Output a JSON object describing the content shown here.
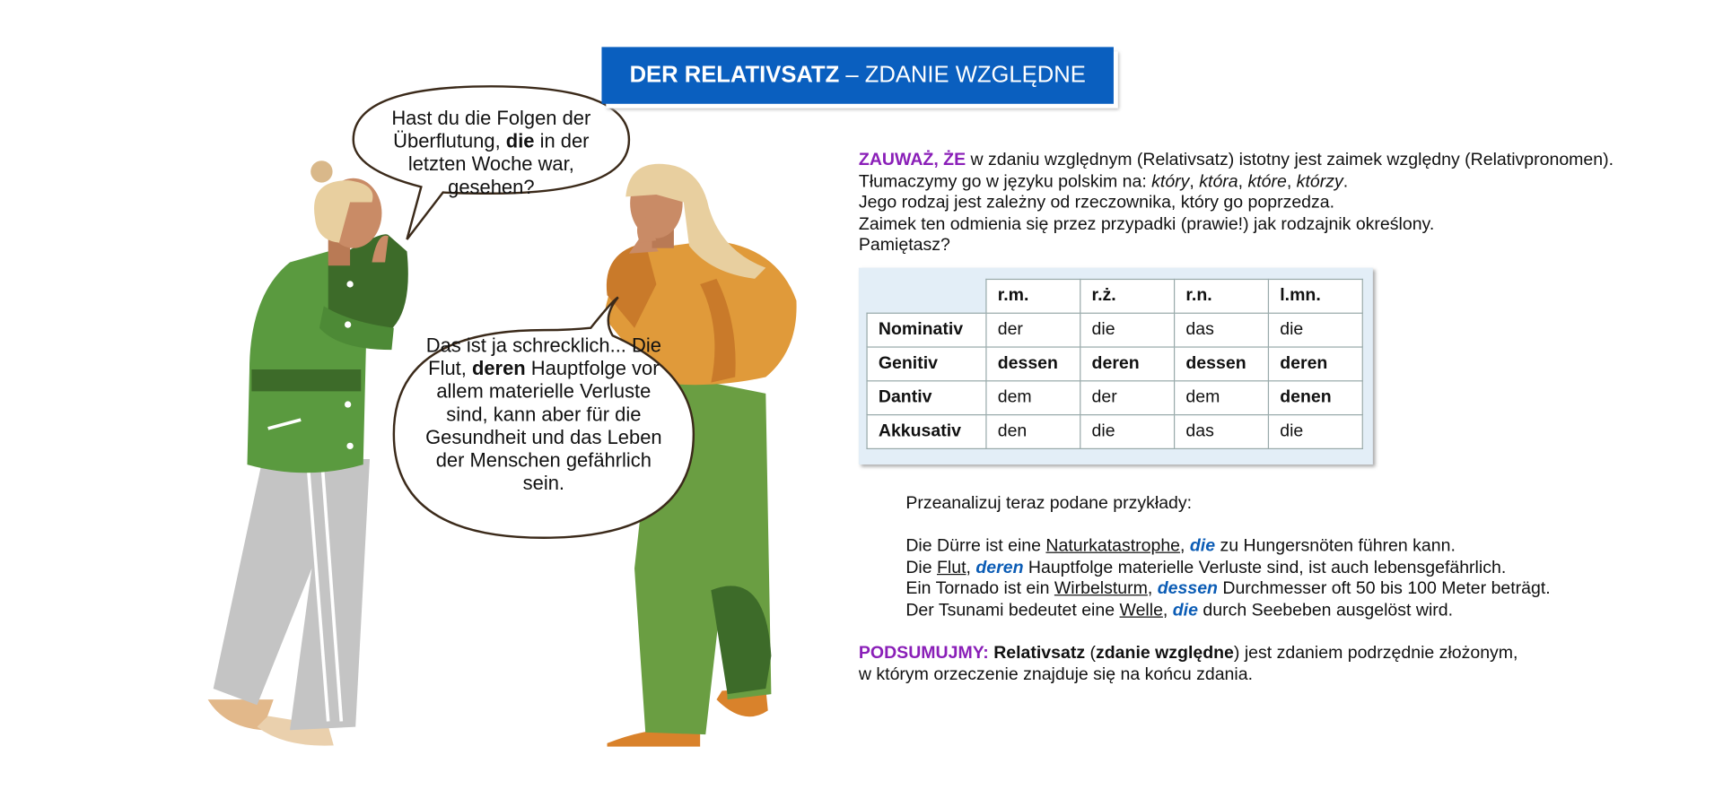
{
  "title": [
    {
      "text": "DER RELATIVSATZ",
      "style": "bold"
    },
    {
      "text": " – ZDANIE WZGLĘDNE"
    }
  ],
  "bubble_1": [
    {
      "text": "Hast du die Folgen der Überflutung, "
    },
    {
      "text": "die",
      "style": "bold"
    },
    {
      "text": " in der letzten Woche war, gesehen?"
    }
  ],
  "bubble_2": [
    {
      "text": "Das ist ja schrecklich... Die Flut, "
    },
    {
      "text": "deren",
      "style": "bold"
    },
    {
      "text": " Hauptfolge vor allem materielle Verluste sind, kann aber für die Gesundheit und das Leben der Menschen gefährlich sein."
    }
  ],
  "note": {
    "lines": [
      [
        {
          "text": "ZAUWAŻ, ŻE",
          "style": "label"
        },
        {
          "text": " w zdaniu względnym (Relativsatz) istotny jest zaimek względny (Relativpronomen)."
        }
      ],
      [
        {
          "text": "Tłumaczymy go w języku polskim na: "
        },
        {
          "text": "który",
          "style": "italic"
        },
        {
          "text": ", "
        },
        {
          "text": "która",
          "style": "italic"
        },
        {
          "text": ", "
        },
        {
          "text": "które",
          "style": "italic"
        },
        {
          "text": ", "
        },
        {
          "text": "którzy",
          "style": "italic"
        },
        {
          "text": "."
        }
      ],
      [
        {
          "text": "Jego rodzaj jest zależny od rzeczownika, który go poprzedza."
        }
      ],
      [
        {
          "text": "Zaimek ten odmienia się przez przypadki (prawie!) jak rodzajnik określony."
        }
      ],
      [
        {
          "text": "Pamiętasz?"
        }
      ]
    ]
  },
  "table": {
    "header": [
      "r.m.",
      "r.ż.",
      "r.n.",
      "l.mn."
    ],
    "rows": [
      {
        "case": "Nominativ",
        "forms": [
          {
            "text": "der"
          },
          {
            "text": "die"
          },
          {
            "text": "das"
          },
          {
            "text": "die"
          }
        ]
      },
      {
        "case": "Genitiv",
        "forms": [
          {
            "text": "dessen",
            "style": "bold"
          },
          {
            "text": "deren",
            "style": "bold"
          },
          {
            "text": "dessen",
            "style": "bold"
          },
          {
            "text": "deren",
            "style": "bold"
          }
        ]
      },
      {
        "case": "Dantiv",
        "forms": [
          {
            "text": "dem"
          },
          {
            "text": "der"
          },
          {
            "text": "dem"
          },
          {
            "text": "denen",
            "style": "bold"
          }
        ]
      },
      {
        "case": "Akkusativ",
        "forms": [
          {
            "text": "den"
          },
          {
            "text": "die"
          },
          {
            "text": "das"
          },
          {
            "text": "die"
          }
        ]
      }
    ]
  },
  "examples": {
    "intro": "Przeanalizuj teraz podane przykłady:",
    "lines": [
      [
        {
          "text": "Die Dürre ist eine "
        },
        {
          "text": "Naturkatastrophe",
          "style": "underline"
        },
        {
          "text": ", "
        },
        {
          "text": "die",
          "style": "pronoun"
        },
        {
          "text": " zu Hungersnöten führen kann."
        }
      ],
      [
        {
          "text": "Die "
        },
        {
          "text": "Flut",
          "style": "underline"
        },
        {
          "text": ", "
        },
        {
          "text": "deren",
          "style": "pronoun"
        },
        {
          "text": " Hauptfolge materielle Verluste sind, ist auch lebensgefährlich."
        }
      ],
      [
        {
          "text": "Ein Tornado ist ein "
        },
        {
          "text": "Wirbelsturm",
          "style": "underline"
        },
        {
          "text": ", "
        },
        {
          "text": "dessen",
          "style": "pronoun"
        },
        {
          "text": " Durchmesser oft 50 bis 100 Meter beträgt."
        }
      ],
      [
        {
          "text": "Der Tsunami bedeutet eine "
        },
        {
          "text": "Welle",
          "style": "underline"
        },
        {
          "text": ", "
        },
        {
          "text": "die",
          "style": "pronoun"
        },
        {
          "text": " durch Seebeben ausgelöst wird."
        }
      ]
    ]
  },
  "summary": {
    "lines": [
      [
        {
          "text": "PODSUMUJMY:",
          "style": "label"
        },
        {
          "text": " "
        },
        {
          "text": "Relativsatz",
          "style": "bold"
        },
        {
          "text": " ("
        },
        {
          "text": "zdanie względne",
          "style": "bold"
        },
        {
          "text": ") jest zdaniem podrzędnie złożonym,"
        }
      ],
      [
        {
          "text": "w którym orzeczenie znajduje się na końcu zdania."
        }
      ]
    ]
  }
}
